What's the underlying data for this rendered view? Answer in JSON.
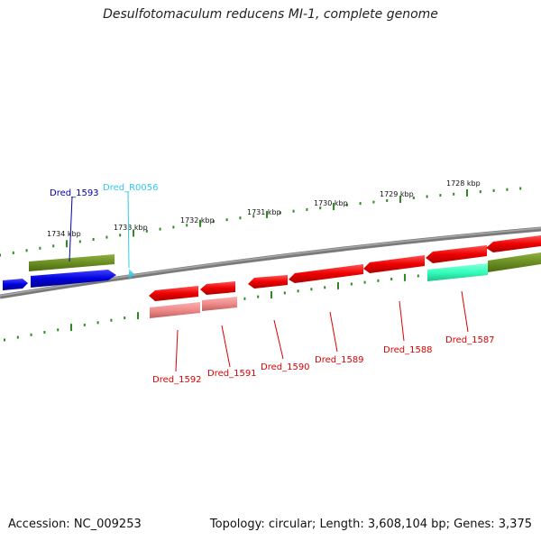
{
  "title": "Desulfotomaculum reducens MI-1, complete genome",
  "footer": {
    "accession": "Accession: NC_009253",
    "summary": "Topology: circular; Length: 3,608,104 bp; Genes: 3,375"
  },
  "ruler_labels": [
    "1734 kbp",
    "1733 kbp",
    "1732 kbp",
    "1731 kbp",
    "1730 kbp",
    "1729 kbp",
    "1728 kbp"
  ],
  "gene_labels": {
    "dred_1593": "Dred_1593",
    "dred_r0056": "Dred_R0056",
    "dred_1592": "Dred_1592",
    "dred_1591": "Dred_1591",
    "dred_1590": "Dred_1590",
    "dred_1589": "Dred_1589",
    "dred_1588": "Dred_1588",
    "dred_1587": "Dred_1587"
  },
  "colors": {
    "forward_gene": "#0000dd",
    "reverse_gene": "#ee0000",
    "reverse_gene_light": "#f08a8a",
    "cds_bar": "#6b8e23",
    "rna_gene": "#3fc8e8",
    "teal_gene": "#33ffbb",
    "tick": "#2e8b22",
    "backbone": "#808080"
  }
}
